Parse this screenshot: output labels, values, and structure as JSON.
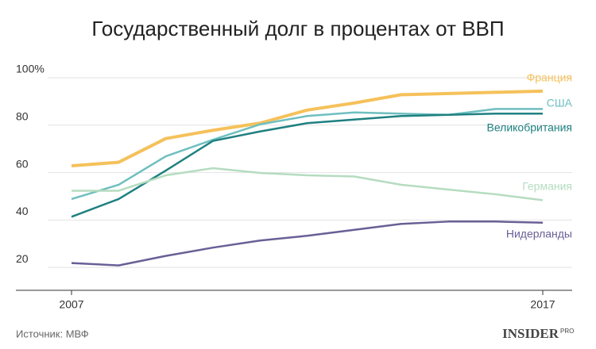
{
  "chart_data": {
    "type": "line",
    "title": "Государственный долг в процентах от ВВП",
    "x": [
      2007,
      2008,
      2009,
      2010,
      2011,
      2012,
      2013,
      2014,
      2015,
      2016,
      2017
    ],
    "series": [
      {
        "name": "Франция",
        "color": "#f5c15a",
        "values": [
          59.5,
          61,
          71,
          74.5,
          77.5,
          83,
          86,
          89.5,
          90,
          90.5,
          91
        ]
      },
      {
        "name": "США",
        "color": "#6fbfc0",
        "values": [
          45.5,
          51.5,
          63.5,
          70.5,
          77,
          80.5,
          82,
          81.5,
          81,
          83.5,
          83.5
        ]
      },
      {
        "name": "Великобритания",
        "color": "#1f8080",
        "values": [
          38,
          45.5,
          57.5,
          70,
          74,
          77.5,
          79,
          80.5,
          81,
          81.5,
          81.5
        ]
      },
      {
        "name": "Германия",
        "color": "#b5dcc0",
        "values": [
          49,
          49,
          55.5,
          58.5,
          56.5,
          55.5,
          55,
          51.5,
          49.5,
          47.5,
          45
        ]
      },
      {
        "name": "Нидерланды",
        "color": "#6a5f96",
        "values": [
          18.5,
          17.5,
          21.5,
          25,
          28,
          30,
          32.5,
          35,
          36,
          36,
          35.5
        ]
      }
    ],
    "xlim": [
      2007,
      2017
    ],
    "xticks": [
      2007,
      2017
    ],
    "ylim": [
      7,
      100
    ],
    "yticks": [
      20,
      40,
      60,
      80,
      {
        "value": 100,
        "label": "100%"
      }
    ],
    "grid": true,
    "source": "Источник: МВФ",
    "logo": {
      "main": "INSIDER",
      "sub": "PRO"
    }
  }
}
